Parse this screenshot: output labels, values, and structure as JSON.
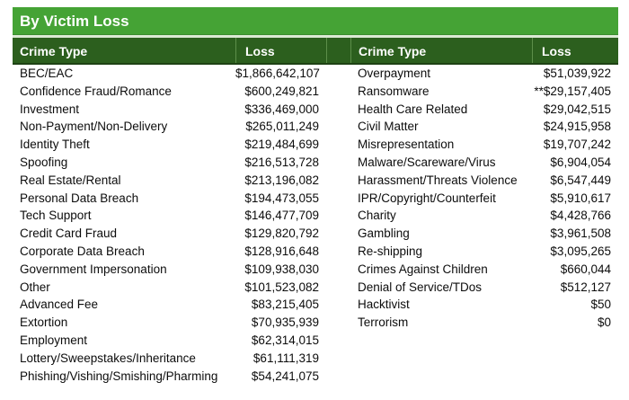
{
  "title": "By Victim Loss",
  "columns": {
    "crime_type": "Crime Type",
    "loss": "Loss"
  },
  "colors": {
    "title_bar": "#45a335",
    "title_edge": "#3a8c2d",
    "header_bar": "#2c5f1e",
    "header_divider": "#5d8f4a",
    "header_bottom": "#1e4214",
    "gap": "#dcead4",
    "header_text": "#ffffff",
    "body_text": "#0c0c0c"
  },
  "table": {
    "left_rows": [
      {
        "type": "BEC/EAC",
        "loss": "$1,866,642,107"
      },
      {
        "type": "Confidence Fraud/Romance",
        "loss": "$600,249,821"
      },
      {
        "type": "Investment",
        "loss": "$336,469,000"
      },
      {
        "type": "Non-Payment/Non-Delivery",
        "loss": "$265,011,249"
      },
      {
        "type": "Identity Theft",
        "loss": "$219,484,699"
      },
      {
        "type": "Spoofing",
        "loss": "$216,513,728"
      },
      {
        "type": "Real Estate/Rental",
        "loss": "$213,196,082"
      },
      {
        "type": "Personal Data Breach",
        "loss": "$194,473,055"
      },
      {
        "type": "Tech Support",
        "loss": "$146,477,709"
      },
      {
        "type": "Credit Card Fraud",
        "loss": "$129,820,792"
      },
      {
        "type": "Corporate Data Breach",
        "loss": "$128,916,648"
      },
      {
        "type": "Government Impersonation",
        "loss": "$109,938,030"
      },
      {
        "type": "Other",
        "loss": "$101,523,082"
      },
      {
        "type": "Advanced Fee",
        "loss": "$83,215,405"
      },
      {
        "type": "Extortion",
        "loss": "$70,935,939"
      },
      {
        "type": "Employment",
        "loss": "$62,314,015"
      },
      {
        "type": "Lottery/Sweepstakes/Inheritance",
        "loss": "$61,111,319"
      },
      {
        "type": "Phishing/Vishing/Smishing/Pharming",
        "loss": "$54,241,075"
      }
    ],
    "right_rows": [
      {
        "type": "Overpayment",
        "loss": "$51,039,922"
      },
      {
        "type": "Ransomware",
        "loss": "**$29,157,405"
      },
      {
        "type": "Health Care Related",
        "loss": "$29,042,515"
      },
      {
        "type": "Civil Matter",
        "loss": "$24,915,958"
      },
      {
        "type": "Misrepresentation",
        "loss": "$19,707,242"
      },
      {
        "type": "Malware/Scareware/Virus",
        "loss": "$6,904,054"
      },
      {
        "type": "Harassment/Threats Violence",
        "loss": "$6,547,449"
      },
      {
        "type": "IPR/Copyright/Counterfeit",
        "loss": "$5,910,617"
      },
      {
        "type": "Charity",
        "loss": "$4,428,766"
      },
      {
        "type": "Gambling",
        "loss": "$3,961,508"
      },
      {
        "type": "Re-shipping",
        "loss": "$3,095,265"
      },
      {
        "type": "Crimes Against Children",
        "loss": "$660,044"
      },
      {
        "type": "Denial of Service/TDos",
        "loss": "$512,127"
      },
      {
        "type": "Hacktivist",
        "loss": "$50"
      },
      {
        "type": "Terrorism",
        "loss": "$0"
      }
    ]
  }
}
